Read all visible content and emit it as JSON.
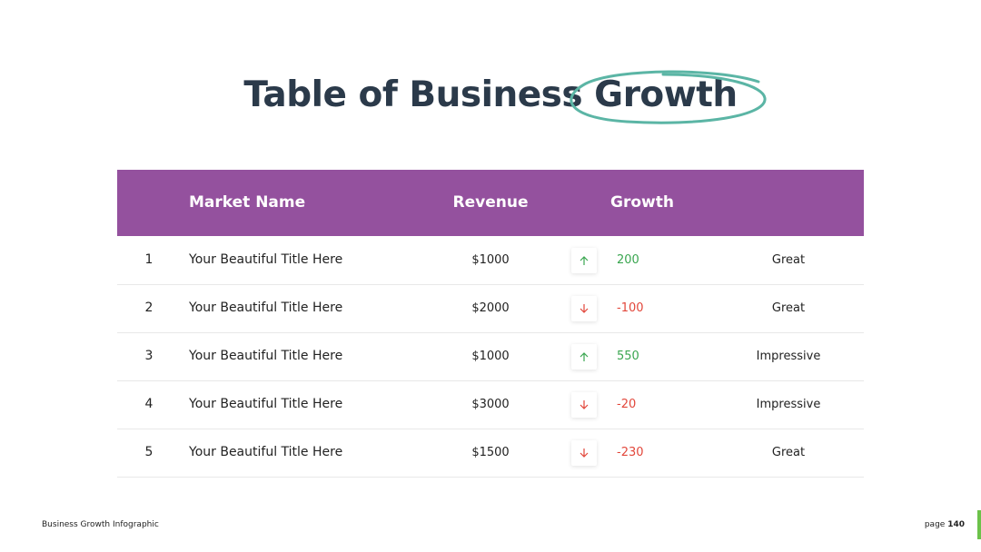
{
  "header": {
    "title": "Table of Business Growth"
  },
  "table": {
    "columns": [
      "Market Name",
      "Revenue",
      "Growth"
    ],
    "rows": [
      [
        1,
        "Your Beautiful Title Here",
        "$1000",
        200,
        "Great"
      ],
      [
        2,
        "Your Beautiful Title Here",
        "$2000",
        -100,
        "Great"
      ],
      [
        3,
        "Your Beautiful Title Here",
        "$1000",
        550,
        "Impressive"
      ],
      [
        4,
        "Your Beautiful Title Here",
        "$3000",
        -20,
        "Impressive"
      ],
      [
        5,
        "Your Beautiful Title Here",
        "$1500",
        -230,
        "Great"
      ]
    ]
  },
  "footer": {
    "title": "Business Growth Infographic",
    "page_label": "page",
    "page_number": 140
  }
}
